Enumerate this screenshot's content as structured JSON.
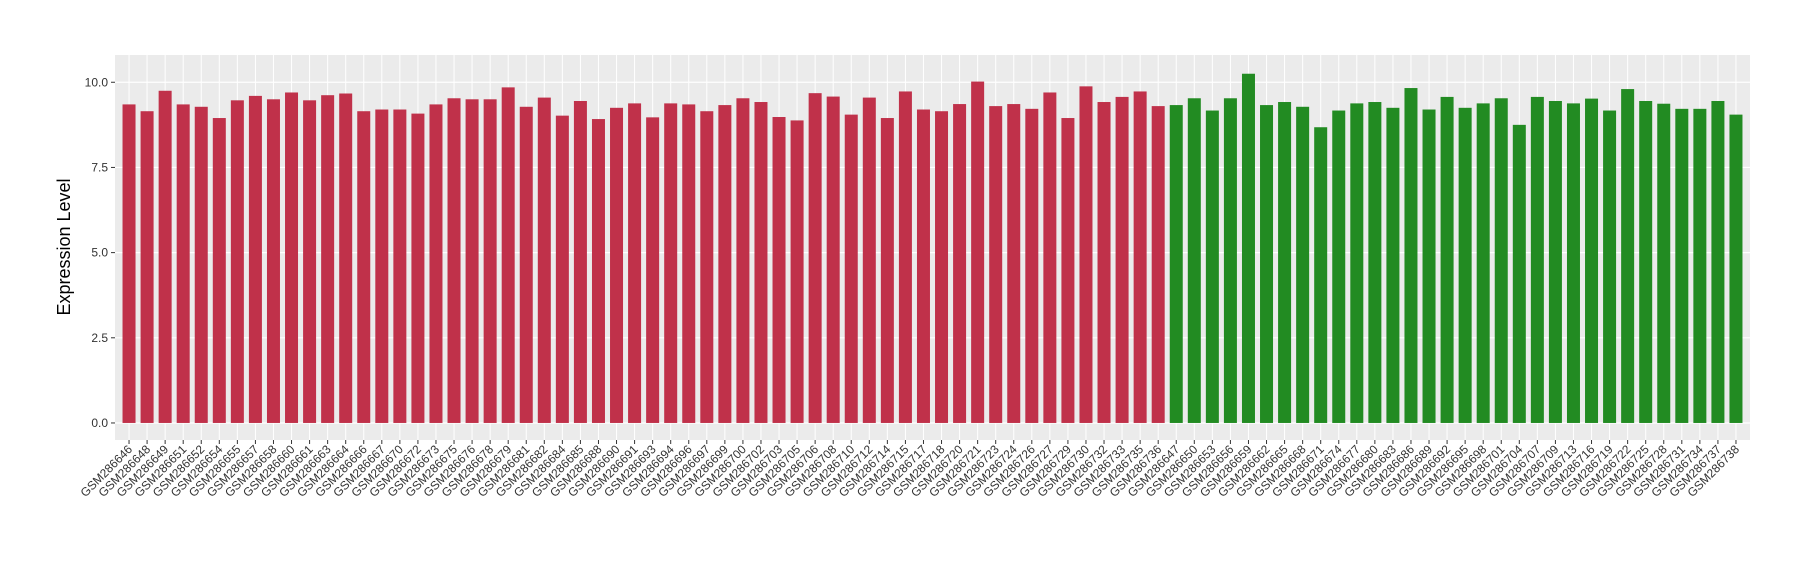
{
  "chart_data": {
    "type": "bar",
    "y_label": "Expression Level",
    "ylim": [
      -0.5,
      10.8
    ],
    "yticks": [
      {
        "value": 0,
        "label": "0.0"
      },
      {
        "value": 2.5,
        "label": "2.5"
      },
      {
        "value": 5,
        "label": "5.0"
      },
      {
        "value": 7.5,
        "label": "7.5"
      },
      {
        "value": 10,
        "label": "10.0"
      }
    ],
    "grid": true,
    "series": [
      {
        "color": "#c0314a",
        "categories": [
          "GSM286646",
          "GSM286648",
          "GSM286649",
          "GSM286651",
          "GSM286652",
          "GSM286654",
          "GSM286655",
          "GSM286657",
          "GSM286658",
          "GSM286660",
          "GSM286661",
          "GSM286663",
          "GSM286664",
          "GSM286666",
          "GSM286667",
          "GSM286670",
          "GSM286672",
          "GSM286673",
          "GSM286675",
          "GSM286676",
          "GSM286678",
          "GSM286679",
          "GSM286681",
          "GSM286682",
          "GSM286684",
          "GSM286685",
          "GSM286688",
          "GSM286690",
          "GSM286691",
          "GSM286693",
          "GSM286694",
          "GSM286696",
          "GSM286697",
          "GSM286699",
          "GSM286700",
          "GSM286702",
          "GSM286703",
          "GSM286705",
          "GSM286706",
          "GSM286708",
          "GSM286710",
          "GSM286712",
          "GSM286714",
          "GSM286715",
          "GSM286717",
          "GSM286718",
          "GSM286720",
          "GSM286721",
          "GSM286723",
          "GSM286724",
          "GSM286726",
          "GSM286727",
          "GSM286729",
          "GSM286730",
          "GSM286732",
          "GSM286733",
          "GSM286735",
          "GSM286736"
        ],
        "values": [
          9.35,
          9.15,
          9.75,
          9.35,
          9.28,
          8.95,
          9.47,
          9.6,
          9.5,
          9.7,
          9.47,
          9.62,
          9.67,
          9.15,
          9.2,
          9.2,
          9.08,
          9.35,
          9.53,
          9.5,
          9.5,
          9.85,
          9.28,
          9.55,
          9.02,
          9.45,
          8.92,
          9.25,
          9.38,
          8.97,
          9.38,
          9.35,
          9.15,
          9.33,
          9.53,
          9.42,
          8.98,
          8.88,
          9.68,
          9.58,
          9.05,
          9.55,
          8.95,
          9.73,
          9.2,
          9.15,
          9.36,
          10.02,
          9.3,
          9.36,
          9.22,
          9.7,
          8.95,
          9.88,
          9.42,
          9.57,
          9.73,
          9.3
        ]
      },
      {
        "color": "#228b22",
        "categories": [
          "GSM286647",
          "GSM286650",
          "GSM286653",
          "GSM286656",
          "GSM286659",
          "GSM286662",
          "GSM286665",
          "GSM286668",
          "GSM286671",
          "GSM286674",
          "GSM286677",
          "GSM286680",
          "GSM286683",
          "GSM286686",
          "GSM286689",
          "GSM286692",
          "GSM286695",
          "GSM286698",
          "GSM286701",
          "GSM286704",
          "GSM286707",
          "GSM286709",
          "GSM286713",
          "GSM286716",
          "GSM286719",
          "GSM286722",
          "GSM286725",
          "GSM286728",
          "GSM286731",
          "GSM286734",
          "GSM286737",
          "GSM286738"
        ],
        "values": [
          9.33,
          9.53,
          9.17,
          9.53,
          10.25,
          9.33,
          9.42,
          9.28,
          8.68,
          9.17,
          9.38,
          9.42,
          9.25,
          9.83,
          9.2,
          9.57,
          9.25,
          9.38,
          9.53,
          8.75,
          9.57,
          9.45,
          9.38,
          9.52,
          9.17,
          9.8,
          9.45,
          9.37,
          9.22,
          9.22,
          9.45,
          9.05
        ]
      }
    ]
  }
}
